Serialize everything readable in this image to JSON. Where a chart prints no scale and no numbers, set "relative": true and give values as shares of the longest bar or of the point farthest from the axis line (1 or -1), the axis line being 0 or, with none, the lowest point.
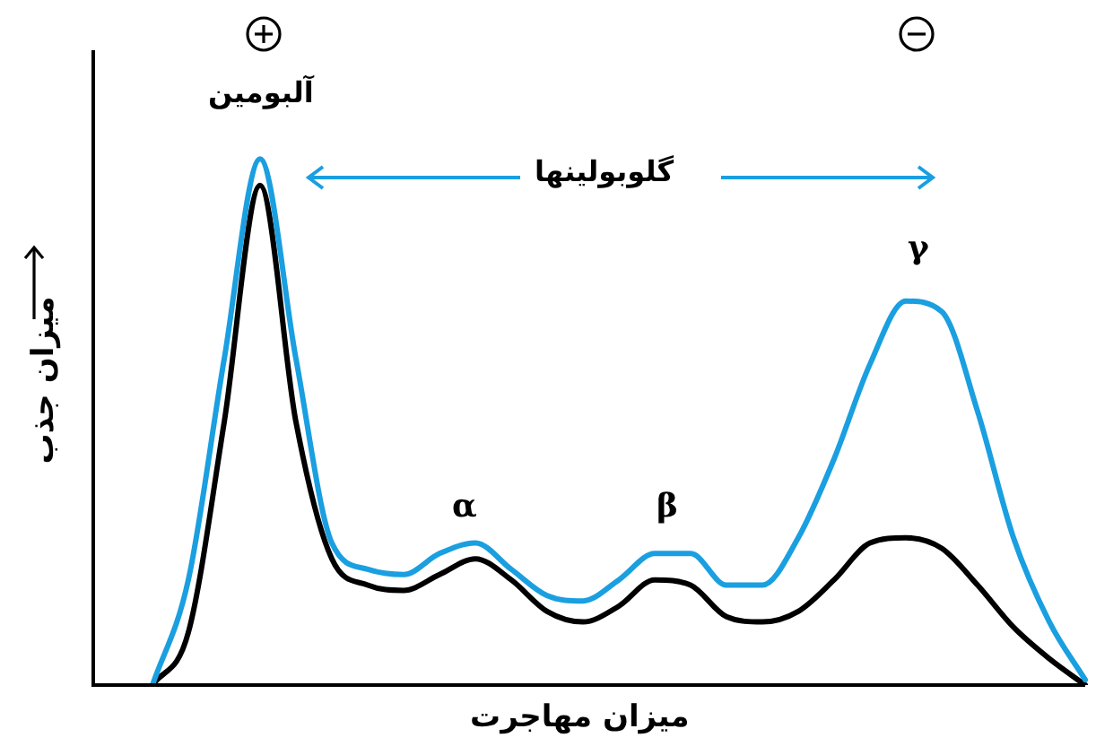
{
  "chart_data": {
    "type": "line",
    "relative": true,
    "xlabel": "میزان مهاجرت",
    "ylabel": "میزان جذب",
    "categories": [
      null,
      null,
      null,
      null,
      null,
      null,
      null,
      null,
      null,
      null,
      null,
      null,
      null,
      null,
      null,
      null,
      null,
      null,
      null,
      null,
      null,
      null,
      null,
      null,
      null,
      null,
      null,
      null,
      null
    ],
    "series": [
      {
        "color": "#1a9fe0",
        "values": [
          null,
          null,
          0,
          0.2,
          0.62,
          1,
          0.62,
          0.27,
          0.22,
          0.21,
          0.25,
          0.27,
          0.22,
          0.17,
          0.16,
          0.2,
          0.25,
          0.25,
          0.19,
          0.19,
          0.28,
          0.43,
          0.61,
          0.73,
          0.71,
          0.52,
          0.28,
          0.12,
          0.01
        ]
      },
      {
        "color": "#000000",
        "values": [
          null,
          null,
          0,
          0.1,
          0.5,
          0.95,
          0.5,
          0.24,
          0.19,
          0.18,
          0.21,
          0.24,
          0.2,
          0.14,
          0.12,
          0.15,
          0.2,
          0.19,
          0.13,
          0.12,
          0.14,
          0.2,
          0.27,
          0.28,
          0.26,
          0.19,
          0.11,
          0.05,
          0
        ]
      }
    ],
    "annotations": [
      "آلبومین",
      "گلوبولینها",
      "α",
      "β",
      "γ"
    ],
    "marker": "none",
    "line_style": "solid"
  }
}
